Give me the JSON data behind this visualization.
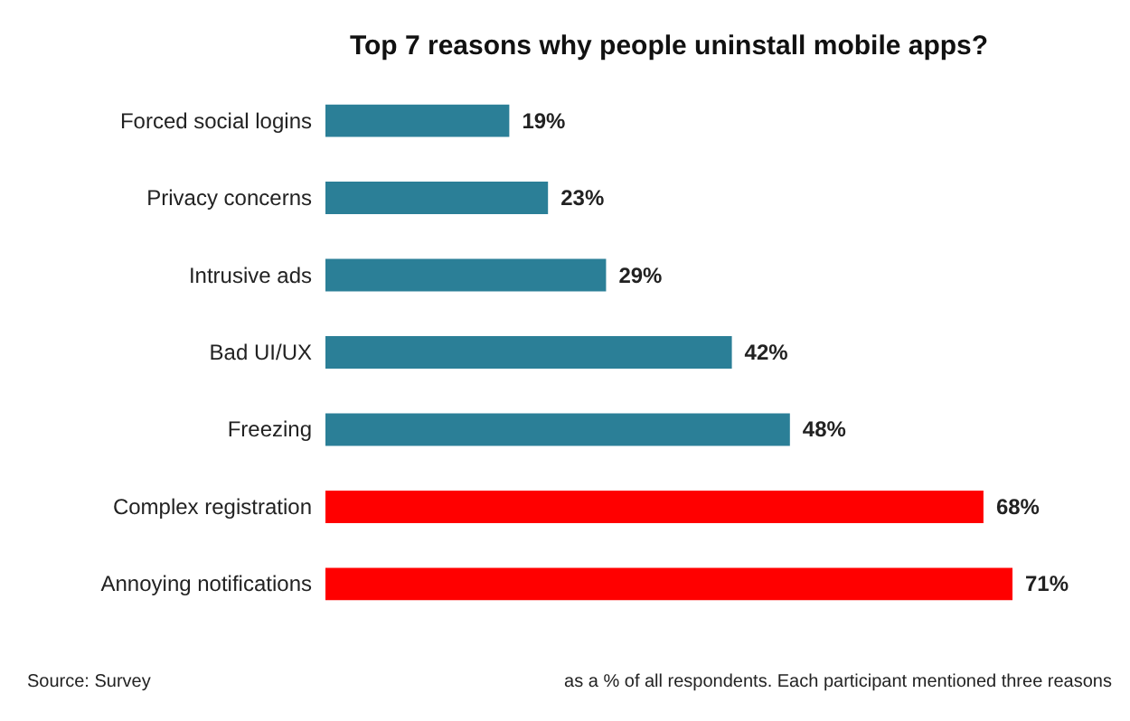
{
  "chart_data": {
    "type": "bar",
    "orientation": "horizontal",
    "title": "Top 7 reasons why people uninstall mobile apps?",
    "categories": [
      "Forced social logins",
      "Privacy concerns",
      "Intrusive ads",
      "Bad UI/UX",
      "Freezing",
      "Complex registration",
      "Annoying notifications"
    ],
    "values": [
      19,
      23,
      29,
      42,
      48,
      68,
      71
    ],
    "colors": [
      "#2b7f97",
      "#2b7f97",
      "#2b7f97",
      "#2b7f97",
      "#2b7f97",
      "#ff0000",
      "#ff0000"
    ],
    "value_labels": [
      "19%",
      "23%",
      "29%",
      "42%",
      "48%",
      "68%",
      "71%"
    ],
    "annotations": [
      "Source: Survey",
      "as a % of all respondents. Each participant mentioned three reasons"
    ],
    "grid": false
  }
}
